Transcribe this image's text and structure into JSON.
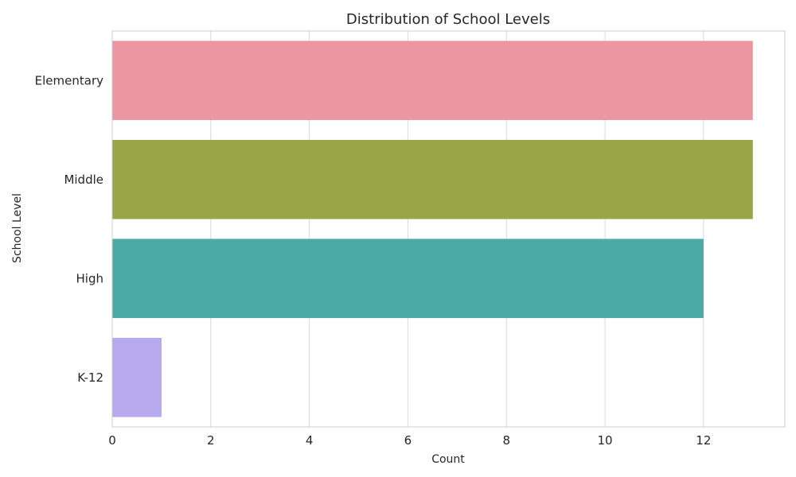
{
  "chart_data": {
    "type": "bar",
    "orientation": "horizontal",
    "title": "Distribution of School Levels",
    "xlabel": "Count",
    "ylabel": "School Level",
    "categories": [
      "Elementary",
      "Middle",
      "High",
      "K-12"
    ],
    "values": [
      13,
      13,
      12,
      1
    ],
    "colors": [
      "#ec96a1",
      "#99a547",
      "#4baaa5",
      "#b6a9ed"
    ],
    "xlim": [
      0,
      13.65
    ],
    "xticks": [
      0,
      2,
      4,
      6,
      8,
      10,
      12
    ],
    "grid": true,
    "grid_axis": "x",
    "legend": "none"
  }
}
